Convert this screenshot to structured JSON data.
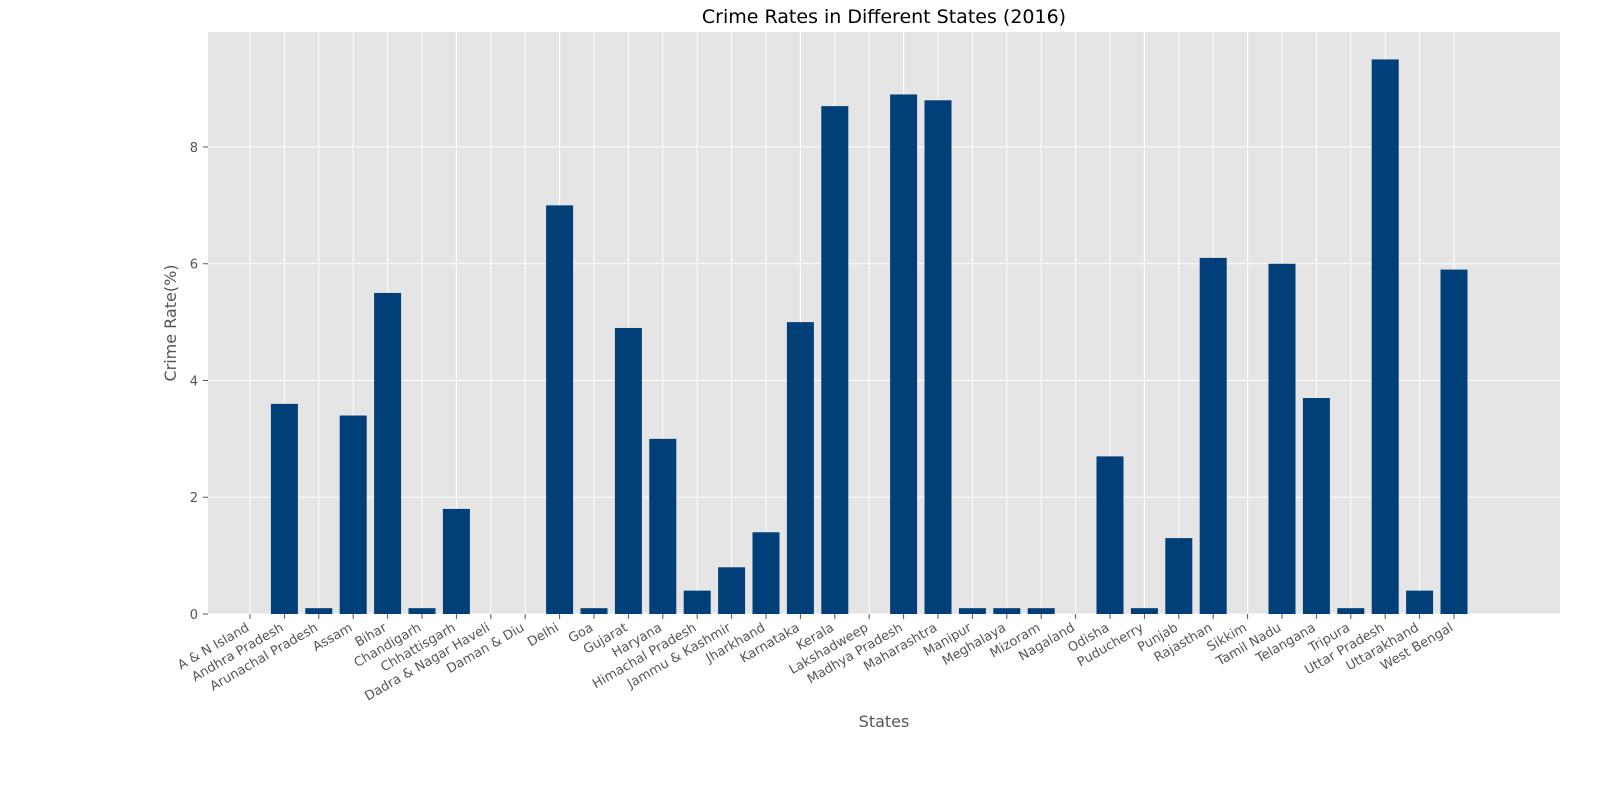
{
  "chart_data": {
    "type": "bar",
    "title": "Crime Rates in Different States (2016)",
    "xlabel": "States",
    "ylabel": "Crime Rate(%)",
    "ylim": [
      0,
      9.97
    ],
    "yticks": [
      0,
      2,
      4,
      6,
      8
    ],
    "grid": true,
    "legend": "none",
    "colors": {
      "bar": "#003f78",
      "plot_background": "#e5e5e5",
      "grid": "#ffffff",
      "text": "#555555"
    },
    "categories": [
      "A & N Island",
      "Andhra Pradesh",
      "Arunachal Pradesh",
      "Assam",
      "Bihar",
      "Chandigarh",
      "Chhattisgarh",
      "Dadra & Nagar Haveli",
      "Daman & Diu",
      "Delhi",
      "Goa",
      "Gujarat",
      "Haryana",
      "Himachal Pradesh",
      "Jammu & Kashmir",
      "Jharkhand",
      "Karnataka",
      "Kerala",
      "Lakshadweep",
      "Madhya Pradesh",
      "Maharashtra",
      "Manipur",
      "Meghalaya",
      "Mizoram",
      "Nagaland",
      "Odisha",
      "Puducherry",
      "Punjab",
      "Rajasthan",
      "Sikkim",
      "Tamil Nadu",
      "Telangana",
      "Tripura",
      "Uttar Pradesh",
      "Uttarakhand",
      "West Bengal"
    ],
    "values": [
      0,
      3.6,
      0.1,
      3.4,
      5.5,
      0.1,
      1.8,
      0,
      0,
      7.0,
      0.1,
      4.9,
      3.0,
      0.4,
      0.8,
      1.4,
      5.0,
      8.7,
      0,
      8.9,
      8.8,
      0.1,
      0.1,
      0.1,
      0,
      2.7,
      0.1,
      1.3,
      6.1,
      0,
      6.0,
      3.7,
      0.1,
      9.5,
      0.4,
      5.9
    ]
  }
}
